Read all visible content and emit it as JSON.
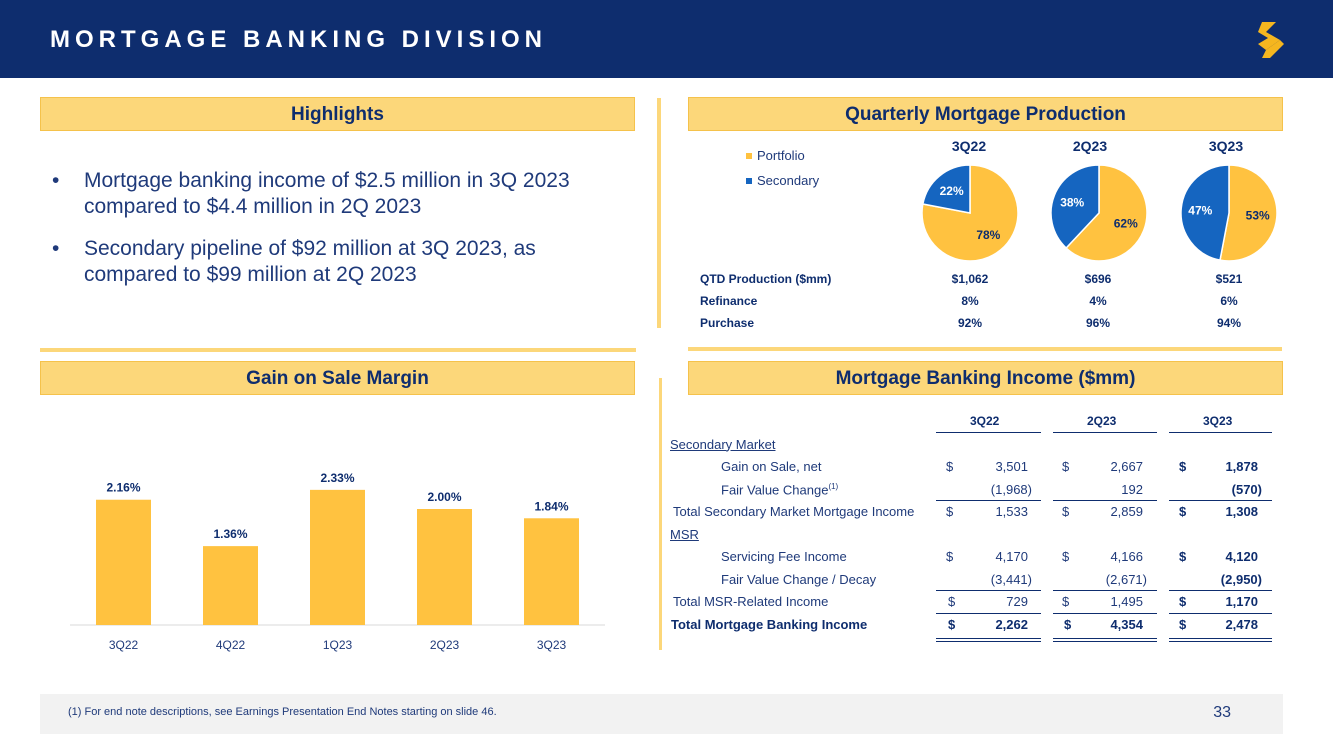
{
  "header": {
    "title": "MORTGAGE BANKING DIVISION"
  },
  "colors": {
    "navy": "#0e2d6e",
    "gold": "#fcd77a",
    "bar": "#ffc240",
    "portfolio": "#ffc240",
    "secondary": "#1565c0"
  },
  "highlights": {
    "title": "Highlights",
    "bullets": [
      {
        "marker": "•",
        "line1": "Mortgage banking income of $2.5 million in 3Q 2023",
        "line2": "compared to $4.4 million in 2Q 2023"
      },
      {
        "marker": "•",
        "line1": "Secondary pipeline of $92 million at 3Q 2023, as",
        "line2": "compared to $99 million at 2Q 2023"
      }
    ]
  },
  "production": {
    "title": "Quarterly Mortgage Production",
    "legend": [
      "Portfolio",
      "Secondary"
    ],
    "pies": [
      {
        "quarter": "3Q22",
        "portfolio": 78,
        "secondary": 22,
        "portfolio_label": "78%",
        "secondary_label": "22%"
      },
      {
        "quarter": "2Q23",
        "portfolio": 62,
        "secondary": 38,
        "portfolio_label": "62%",
        "secondary_label": "38%"
      },
      {
        "quarter": "3Q23",
        "portfolio": 53,
        "secondary": 47,
        "portfolio_label": "53%",
        "secondary_label": "47%"
      }
    ],
    "table": [
      {
        "label": "QTD Production ($mm)",
        "values": [
          "$1,062",
          "$696",
          "$521"
        ]
      },
      {
        "label": "Refinance",
        "values": [
          "8%",
          "4%",
          "6%"
        ]
      },
      {
        "label": "Purchase",
        "values": [
          "92%",
          "96%",
          "94%"
        ]
      }
    ]
  },
  "gain_on_sale": {
    "title": "Gain on Sale Margin"
  },
  "chart_data": {
    "type": "bar",
    "categories": [
      "3Q22",
      "4Q22",
      "1Q23",
      "2Q23",
      "3Q23"
    ],
    "values": [
      2.16,
      1.36,
      2.33,
      2.0,
      1.84
    ],
    "labels": [
      "2.16%",
      "1.36%",
      "2.33%",
      "2.00%",
      "1.84%"
    ],
    "ylim": [
      0,
      2.5
    ],
    "grid": false,
    "legend": "none"
  },
  "mbi": {
    "title": "Mortgage Banking Income ($mm)",
    "columns": [
      "3Q22",
      "2Q23",
      "3Q23"
    ],
    "dollar": "$",
    "secondary_market": "Secondary Market",
    "gain_on_sale": {
      "label": "Gain on Sale, net",
      "values": [
        "3,501",
        "2,667",
        "1,878"
      ]
    },
    "fv_change": {
      "label": "Fair Value Change",
      "footnote": "(1)",
      "values": [
        "(1,968)",
        "192",
        "(570)"
      ]
    },
    "total_secondary": {
      "label": "Total Secondary Market Mortgage Income",
      "values": [
        "1,533",
        "2,859",
        "1,308"
      ]
    },
    "msr": "MSR",
    "servicing": {
      "label": "Servicing Fee Income",
      "values": [
        "4,170",
        "4,166",
        "4,120"
      ]
    },
    "fv_decay": {
      "label": "Fair Value Change / Decay",
      "values": [
        "(3,441)",
        "(2,671)",
        "(2,950)"
      ]
    },
    "total_msr": {
      "label": "Total MSR-Related Income",
      "values": [
        "729",
        "1,495",
        "1,170"
      ]
    },
    "total": {
      "label": "Total Mortgage Banking Income",
      "values": [
        "2,262",
        "4,354",
        "2,478"
      ]
    }
  },
  "footer": {
    "note": "(1)   For end note descriptions, see Earnings Presentation End Notes starting on slide 46.",
    "page": "33"
  }
}
